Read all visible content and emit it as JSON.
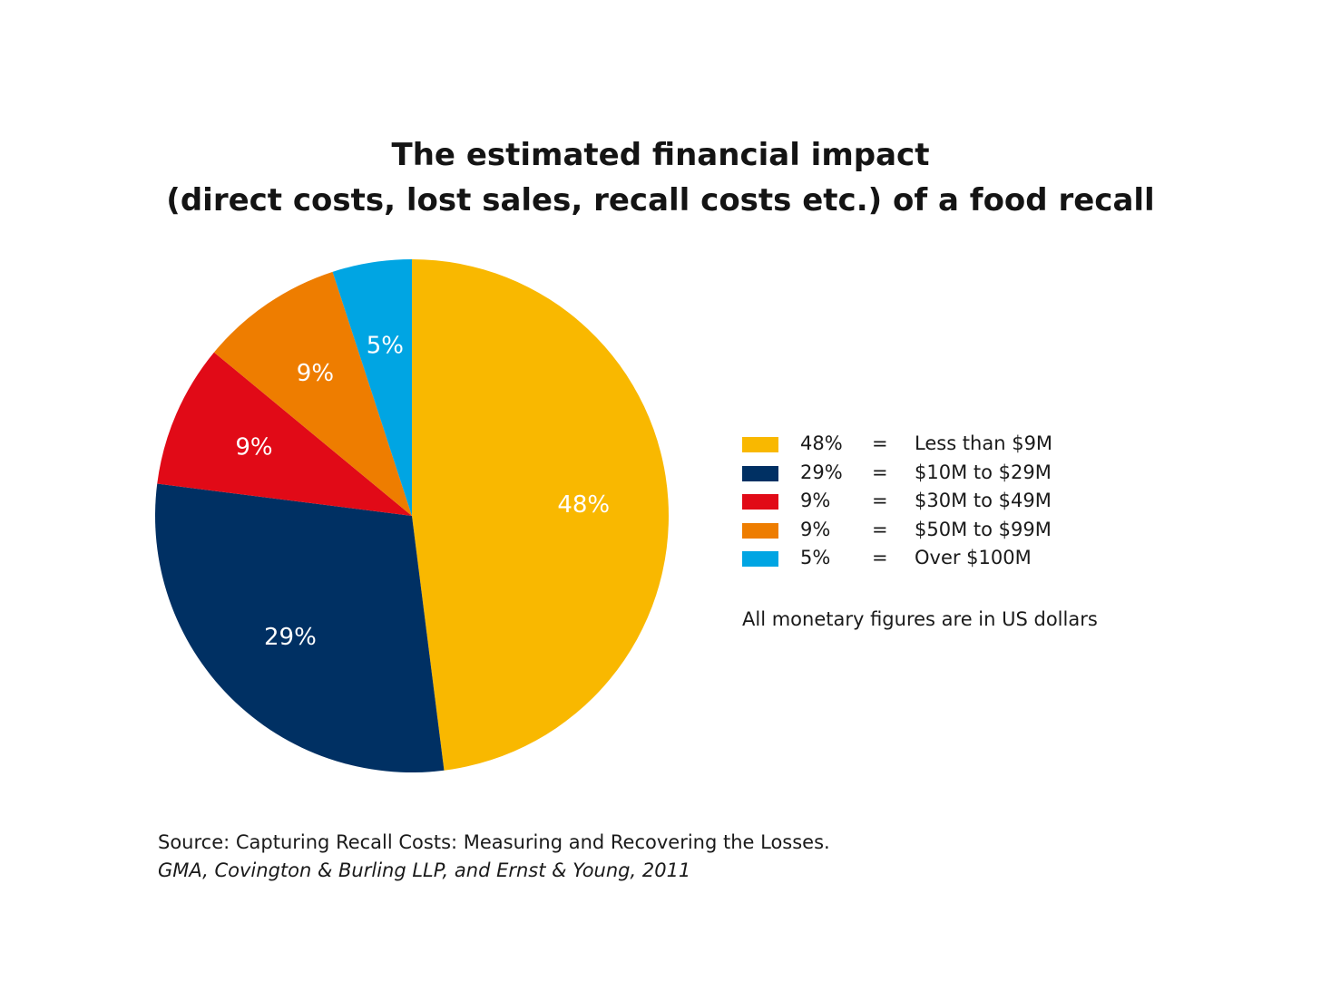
{
  "chart_data": {
    "type": "pie",
    "title": "The estimated financial impact",
    "subtitle": "(direct costs, lost sales, recall costs etc.) of a food recall",
    "slices": [
      {
        "label": "48%",
        "value": 48,
        "color": "#F9B800",
        "legend_pct": "48%",
        "legend_eq": "=",
        "legend_range": "Less than $9M"
      },
      {
        "label": "29%",
        "value": 29,
        "color": "#003063",
        "legend_pct": "29%",
        "legend_eq": "=",
        "legend_range": "$10M to $29M"
      },
      {
        "label": "9%",
        "value": 9,
        "color": "#E10A17",
        "legend_pct": "9%",
        "legend_eq": "=",
        "legend_range": "$30M to $49M"
      },
      {
        "label": "9%",
        "value": 9,
        "color": "#EE7D00",
        "legend_pct": "9%",
        "legend_eq": "=",
        "legend_range": "$50M to $99M"
      },
      {
        "label": "5%",
        "value": 5,
        "color": "#00A5E3",
        "legend_pct": "5%",
        "legend_eq": "=",
        "legend_range": "Over $100M"
      }
    ],
    "legend_position": "right",
    "note": "All monetary figures are in US dollars"
  },
  "source": {
    "line1": "Source: Capturing Recall Costs: Measuring and Recovering the Losses.",
    "line2": "GMA, Covington & Burling LLP, and Ernst & Young, 2011"
  }
}
